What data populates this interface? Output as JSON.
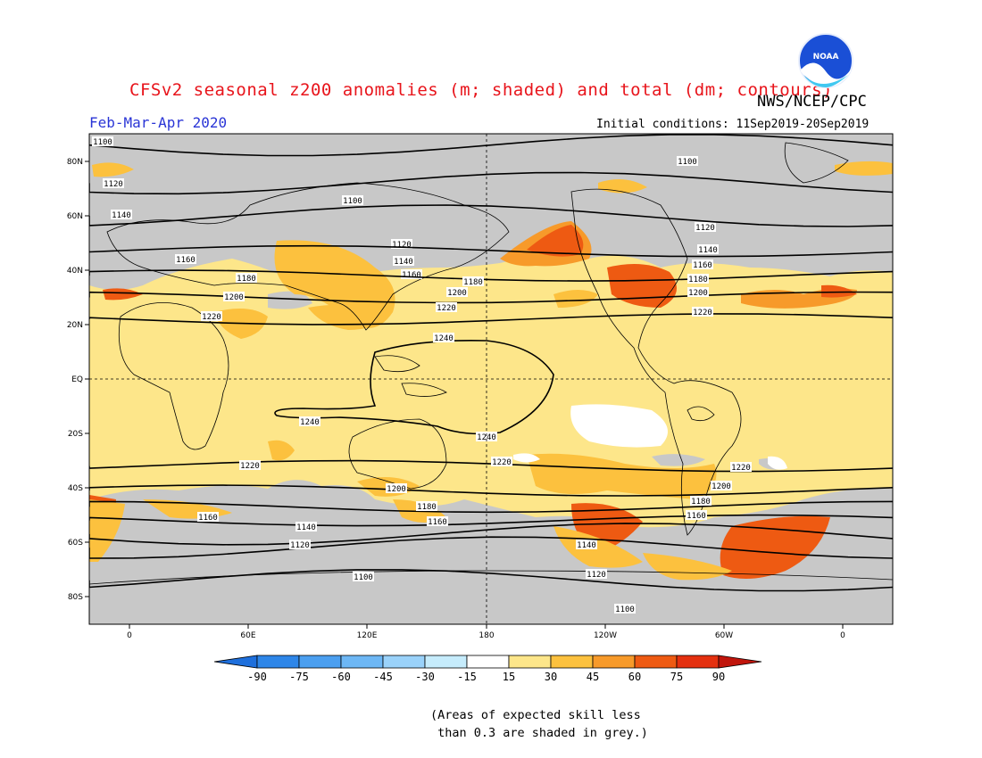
{
  "header": {
    "title": "CFSv2 seasonal z200 anomalies (m; shaded) and total (dm; contours)",
    "agency": "NWS/NCEP/CPC",
    "logo_text": "NOAA",
    "period": "Feb-Mar-Apr 2020",
    "initial_conditions": "Initial conditions: 11Sep2019-20Sep2019"
  },
  "map": {
    "lat_labels": [
      "80N",
      "60N",
      "40N",
      "20N",
      "EQ",
      "20S",
      "40S",
      "60S",
      "80S"
    ],
    "lon_labels": [
      "0",
      "60E",
      "120E",
      "180",
      "120W",
      "60W",
      "0"
    ],
    "colors": {
      "ocean_skill": "#c8c8c8",
      "neutral": "#ffffff",
      "a15": "#fde68a",
      "a30": "#fcc13e",
      "a45": "#f79a2a",
      "a60": "#ee5a12"
    },
    "contours": [
      {
        "label": "1100",
        "lat": 86
      },
      {
        "label": "1120",
        "lat": 72
      },
      {
        "label": "1140",
        "lat": 60
      },
      {
        "label": "1160",
        "lat": 47
      },
      {
        "label": "1180",
        "lat": 38
      },
      {
        "label": "1200",
        "lat": 30
      },
      {
        "label": "1220",
        "lat": 22
      },
      {
        "label": "1240",
        "lat": 8
      },
      {
        "label": "1240",
        "lat": -14
      },
      {
        "label": "1220",
        "lat": -32
      },
      {
        "label": "1200",
        "lat": -41
      },
      {
        "label": "1180",
        "lat": -47
      },
      {
        "label": "1160",
        "lat": -52
      },
      {
        "label": "1140",
        "lat": -57
      },
      {
        "label": "1120",
        "lat": -62
      },
      {
        "label": "1100",
        "lat": -74
      }
    ]
  },
  "colorbar": {
    "labels": [
      "-90",
      "-75",
      "-60",
      "-45",
      "-30",
      "-15",
      "15",
      "30",
      "45",
      "60",
      "75",
      "90"
    ],
    "colors": [
      "#1e6fdc",
      "#2e86e8",
      "#4b9ff0",
      "#6db7f5",
      "#9ad2fa",
      "#c6ecfc",
      "#ffffff",
      "#fde68a",
      "#fcc13e",
      "#f79a2a",
      "#ee5a12",
      "#e4300f",
      "#c0150c"
    ]
  },
  "note": "(Areas of expected skill less\n than 0.3 are shaded in grey.)"
}
